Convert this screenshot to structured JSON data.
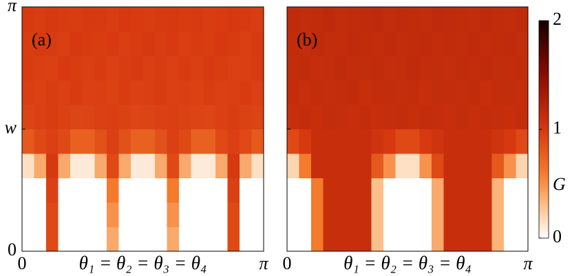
{
  "chart_data": [
    {
      "type": "heatmap",
      "panel_label": "(a)",
      "xlabel": "θ₁ = θ₂ = θ₃ = θ₄",
      "xlim": [
        0,
        3.1416
      ],
      "xticks": [
        0,
        {
          "value": 3.1416,
          "label": "π"
        }
      ],
      "ylim": [
        0,
        3.1416
      ],
      "yticks": [
        0,
        {
          "value": 1.57,
          "label": "w"
        },
        {
          "value": 3.1416,
          "label": "π"
        }
      ],
      "show_ytick_labels": true,
      "z": [
        [
          0,
          0,
          0.9,
          0,
          0,
          0,
          0,
          0.4,
          0,
          0,
          0,
          0,
          0.4,
          0,
          0,
          0,
          0,
          0.9,
          0,
          0
        ],
        [
          0,
          0,
          0.9,
          0,
          0,
          0,
          0,
          0.5,
          0,
          0,
          0,
          0,
          0.5,
          0,
          0,
          0,
          0,
          0.9,
          0,
          0
        ],
        [
          0,
          0,
          0.95,
          0,
          0,
          0,
          0,
          0.6,
          0,
          0,
          0,
          0,
          0.6,
          0,
          0,
          0,
          0,
          0.95,
          0,
          0
        ],
        [
          0.15,
          0.4,
          1.0,
          0.4,
          0.1,
          0.1,
          0.4,
          0.9,
          0.4,
          0.1,
          0.1,
          0.4,
          0.9,
          0.4,
          0.1,
          0.1,
          0.4,
          1.0,
          0.4,
          0.15
        ],
        [
          0.8,
          0.9,
          0.95,
          0.9,
          0.75,
          0.75,
          0.85,
          0.95,
          0.85,
          0.75,
          0.75,
          0.85,
          0.95,
          0.9,
          0.75,
          0.75,
          0.9,
          0.95,
          0.9,
          0.8
        ],
        [
          0.93,
          0.95,
          0.97,
          0.94,
          0.92,
          0.93,
          0.95,
          0.96,
          0.94,
          0.92,
          0.93,
          0.95,
          0.96,
          0.94,
          0.93,
          0.92,
          0.95,
          0.97,
          0.94,
          0.93
        ],
        [
          0.96,
          0.94,
          0.97,
          0.95,
          0.98,
          0.95,
          0.96,
          0.94,
          0.97,
          0.95,
          0.96,
          0.98,
          0.95,
          0.96,
          0.94,
          0.97,
          0.95,
          0.96,
          0.98,
          0.95
        ],
        [
          0.98,
          0.96,
          0.95,
          0.99,
          0.97,
          0.96,
          0.98,
          0.95,
          0.97,
          0.99,
          0.96,
          0.97,
          0.95,
          0.98,
          0.96,
          0.99,
          0.97,
          0.95,
          0.96,
          0.98
        ],
        [
          0.97,
          0.99,
          0.98,
          0.96,
          1.0,
          0.98,
          0.97,
          0.99,
          0.96,
          0.98,
          1.0,
          0.97,
          0.99,
          0.96,
          0.98,
          0.97,
          1.0,
          0.98,
          0.96,
          0.99
        ],
        [
          0.99,
          0.97,
          1.0,
          0.98,
          0.97,
          1.0,
          0.99,
          0.97,
          1.0,
          0.98,
          0.97,
          0.99,
          1.0,
          0.98,
          0.99,
          0.97,
          0.98,
          1.0,
          0.99,
          0.97
        ]
      ]
    },
    {
      "type": "heatmap",
      "panel_label": "(b)",
      "xlabel": "θ₁ = θ₂ = θ₃ = θ₄",
      "xlim": [
        0,
        3.1416
      ],
      "xticks": [
        0,
        {
          "value": 3.1416,
          "label": "π"
        }
      ],
      "ylim": [
        0,
        3.1416
      ],
      "yticks": [
        0,
        1.57,
        3.1416
      ],
      "show_ytick_labels": false,
      "z": [
        [
          0,
          0,
          0.6,
          1.1,
          1.1,
          1.1,
          1.1,
          0.3,
          0,
          0,
          0,
          0,
          0.4,
          1.1,
          1.1,
          1.1,
          1.1,
          0.35,
          0,
          0
        ],
        [
          0,
          0,
          0.6,
          1.1,
          1.1,
          1.1,
          1.1,
          0.3,
          0,
          0,
          0,
          0,
          0.4,
          1.1,
          1.1,
          1.1,
          1.1,
          0.35,
          0,
          0
        ],
        [
          0,
          0,
          0.6,
          1.1,
          1.1,
          1.1,
          1.1,
          0.3,
          0,
          0,
          0,
          0,
          0.4,
          1.1,
          1.1,
          1.1,
          1.1,
          0.35,
          0,
          0
        ],
        [
          0.2,
          0.6,
          1.1,
          1.1,
          1.1,
          1.1,
          1.1,
          0.8,
          0.5,
          0.15,
          0.15,
          0.5,
          0.9,
          1.1,
          1.1,
          1.1,
          1.1,
          0.8,
          0.5,
          0.2
        ],
        [
          0.9,
          1.0,
          1.1,
          1.1,
          1.1,
          1.1,
          1.1,
          1.05,
          1.0,
          0.9,
          0.9,
          1.0,
          1.05,
          1.1,
          1.1,
          1.1,
          1.1,
          1.05,
          1.0,
          0.9
        ],
        [
          1.1,
          1.12,
          1.1,
          1.13,
          1.11,
          1.1,
          1.12,
          1.1,
          1.11,
          1.13,
          1.1,
          1.12,
          1.11,
          1.1,
          1.13,
          1.1,
          1.12,
          1.11,
          1.1,
          1.12
        ],
        [
          1.12,
          1.1,
          1.13,
          1.11,
          1.12,
          1.14,
          1.1,
          1.12,
          1.13,
          1.11,
          1.12,
          1.1,
          1.13,
          1.12,
          1.11,
          1.14,
          1.1,
          1.12,
          1.13,
          1.11
        ],
        [
          1.13,
          1.14,
          1.11,
          1.12,
          1.15,
          1.12,
          1.13,
          1.14,
          1.11,
          1.13,
          1.15,
          1.12,
          1.13,
          1.11,
          1.14,
          1.12,
          1.15,
          1.13,
          1.12,
          1.14
        ],
        [
          1.14,
          1.12,
          1.15,
          1.13,
          1.12,
          1.15,
          1.14,
          1.12,
          1.15,
          1.13,
          1.14,
          1.15,
          1.12,
          1.14,
          1.13,
          1.15,
          1.12,
          1.14,
          1.15,
          1.13
        ],
        [
          1.15,
          1.13,
          1.14,
          1.16,
          1.13,
          1.14,
          1.15,
          1.16,
          1.13,
          1.15,
          1.14,
          1.13,
          1.16,
          1.15,
          1.14,
          1.13,
          1.16,
          1.14,
          1.13,
          1.15
        ]
      ]
    }
  ],
  "colorbar": {
    "label": "G",
    "zlim": [
      0,
      2
    ],
    "ticks": [
      0,
      1,
      2
    ],
    "colorscale": [
      {
        "value": 0,
        "color": "#ffffff"
      },
      {
        "value": 0.3,
        "color": "#fcc08a"
      },
      {
        "value": 0.6,
        "color": "#f47a2c"
      },
      {
        "value": 1,
        "color": "#d6380f"
      },
      {
        "value": 1.5,
        "color": "#8a0c02"
      },
      {
        "value": 2,
        "color": "#150000"
      }
    ]
  }
}
